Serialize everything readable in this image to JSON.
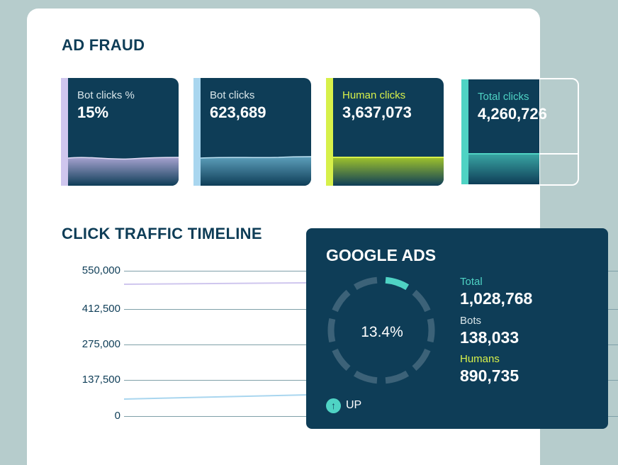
{
  "ad_fraud": {
    "title": "AD FRAUD",
    "cards": [
      {
        "label": "Bot clicks %",
        "value": "15%",
        "accent": "#cfc6ee"
      },
      {
        "label": "Bot clicks",
        "value": "623,689",
        "accent": "#a9d6ef"
      },
      {
        "label": "Human clicks",
        "value": "3,637,073",
        "accent": "#d7f04a"
      },
      {
        "label": "Total clicks",
        "value": "4,260,726",
        "accent": "#4fd3c4"
      }
    ]
  },
  "timeline": {
    "title": "CLICK TRAFFIC TIMELINE",
    "y_ticks": [
      "550,000",
      "412,500",
      "275,000",
      "137,500",
      "0"
    ]
  },
  "google_ads": {
    "title": "GOOGLE ADS",
    "percent": "13.4%",
    "percent_value": 0.134,
    "stats": [
      {
        "label": "Total",
        "value": "1,028,768",
        "color": "#4fd3c4"
      },
      {
        "label": "Bots",
        "value": "138,033",
        "color": "#d9e6ea"
      },
      {
        "label": "Humans",
        "value": "890,735",
        "color": "#d7f04a"
      }
    ],
    "trend": {
      "icon": "arrow-up-icon",
      "label": "UP"
    }
  },
  "colors": {
    "navy": "#0e3d57",
    "teal": "#4fd3c4",
    "lime": "#d7f04a",
    "background": "#b6cccc"
  }
}
